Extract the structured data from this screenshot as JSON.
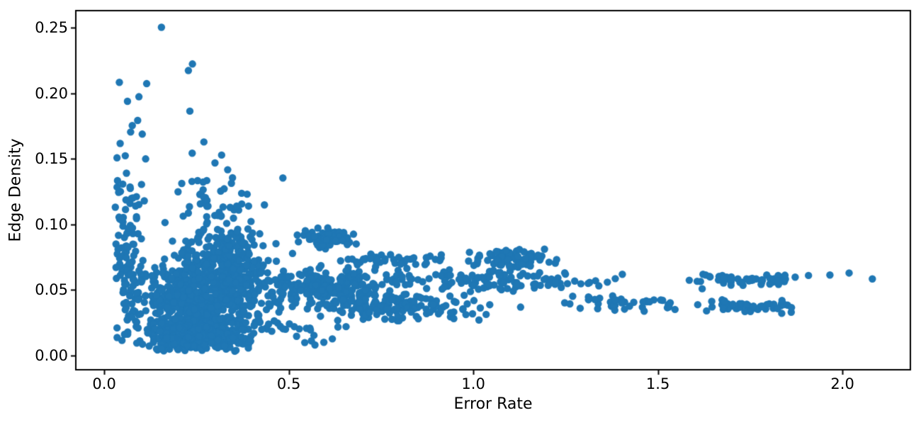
{
  "figure": {
    "background": "#ffffff",
    "text_color": "#000000",
    "spine_color": "#000000"
  },
  "chart_data": {
    "type": "scatter",
    "title": "",
    "xlabel": "Error Rate",
    "ylabel": "Edge Density",
    "x_ticks": [
      0.0,
      0.5,
      1.0,
      1.5,
      2.0
    ],
    "x_tick_labels": [
      "0.0",
      "0.5",
      "1.0",
      "1.5",
      "2.0"
    ],
    "y_ticks": [
      0.0,
      0.05,
      0.1,
      0.15,
      0.2,
      0.25
    ],
    "y_tick_labels": [
      "0.00",
      "0.05",
      "0.10",
      "0.15",
      "0.20",
      "0.25"
    ],
    "xlim": [
      -0.077,
      2.184
    ],
    "ylim": [
      -0.0108,
      0.2632
    ],
    "grid": false,
    "legend": null,
    "marker_color": "#1f77b4",
    "marker_radius_px": 5.2,
    "seed": 1337,
    "clusters": [
      {
        "name": "core-main",
        "n": 550,
        "cx": 0.26,
        "cy": 0.035,
        "sx": 0.09,
        "sy": 0.016,
        "xmin": 0.08,
        "xmax": 0.6,
        "ymin": 0.004,
        "ymax": 0.08
      },
      {
        "name": "core-low-edge",
        "n": 260,
        "cx": 0.24,
        "cy": 0.013,
        "sx": 0.07,
        "sy": 0.005,
        "xmin": 0.1,
        "xmax": 0.5,
        "ymin": 0.003,
        "ymax": 0.03
      },
      {
        "name": "core-upper",
        "n": 280,
        "cx": 0.33,
        "cy": 0.058,
        "sx": 0.09,
        "sy": 0.012,
        "xmin": 0.12,
        "xmax": 0.62,
        "ymin": 0.03,
        "ymax": 0.09
      },
      {
        "name": "core-top-fringe",
        "n": 90,
        "cx": 0.32,
        "cy": 0.083,
        "sx": 0.07,
        "sy": 0.01,
        "xmin": 0.15,
        "xmax": 0.52,
        "ymin": 0.068,
        "ymax": 0.105
      },
      {
        "name": "left-column",
        "n": 115,
        "cx": 0.062,
        "cy": 0.068,
        "sx": 0.021,
        "sy": 0.042,
        "xmin": 0.028,
        "xmax": 0.115,
        "ymin": 0.01,
        "ymax": 0.185
      },
      {
        "name": "upper-sparse",
        "n": 50,
        "cx": 0.3,
        "cy": 0.112,
        "sx": 0.05,
        "sy": 0.016,
        "xmin": 0.17,
        "xmax": 0.46,
        "ymin": 0.088,
        "ymax": 0.18
      },
      {
        "name": "hump-09",
        "n": 70,
        "cx": 0.61,
        "cy": 0.0895,
        "sx": 0.038,
        "sy": 0.004,
        "xmin": 0.5,
        "xmax": 0.69,
        "ymin": 0.079,
        "ymax": 0.098
      },
      {
        "name": "band-right-core",
        "n": 210,
        "cx": 0.62,
        "cy": 0.051,
        "sx": 0.11,
        "sy": 0.0075,
        "xmin": 0.44,
        "xmax": 1.0,
        "ymin": 0.035,
        "ymax": 0.068
      },
      {
        "name": "band-mid-low",
        "n": 130,
        "cx": 0.78,
        "cy": 0.037,
        "sx": 0.12,
        "sy": 0.005,
        "xmin": 0.55,
        "xmax": 1.08,
        "ymin": 0.026,
        "ymax": 0.048
      },
      {
        "name": "band-mid",
        "n": 110,
        "cx": 1.05,
        "cy": 0.058,
        "sx": 0.16,
        "sy": 0.004,
        "xmin": 0.78,
        "xmax": 1.42,
        "ymin": 0.048,
        "ymax": 0.066
      },
      {
        "name": "band-075",
        "n": 75,
        "cx": 1.1,
        "cy": 0.0745,
        "sx": 0.07,
        "sy": 0.0035,
        "xmin": 0.97,
        "xmax": 1.25,
        "ymin": 0.066,
        "ymax": 0.082
      },
      {
        "name": "band-07-left",
        "n": 45,
        "cx": 0.78,
        "cy": 0.073,
        "sx": 0.09,
        "sy": 0.003,
        "xmin": 0.63,
        "xmax": 0.97,
        "ymin": 0.066,
        "ymax": 0.08
      },
      {
        "name": "band-14",
        "n": 40,
        "cx": 1.42,
        "cy": 0.04,
        "sx": 0.09,
        "sy": 0.0035,
        "xmin": 1.24,
        "xmax": 1.57,
        "ymin": 0.03,
        "ymax": 0.047
      },
      {
        "name": "right-band-06",
        "n": 55,
        "cx": 1.76,
        "cy": 0.059,
        "sx": 0.1,
        "sy": 0.0028,
        "xmin": 1.6,
        "xmax": 1.93,
        "ymin": 0.053,
        "ymax": 0.065
      },
      {
        "name": "right-band-037",
        "n": 50,
        "cx": 1.77,
        "cy": 0.038,
        "sx": 0.08,
        "sy": 0.0025,
        "xmin": 1.59,
        "xmax": 1.91,
        "ymin": 0.032,
        "ymax": 0.044
      },
      {
        "name": "low-right-sparse",
        "n": 18,
        "cx": 0.52,
        "cy": 0.018,
        "sx": 0.06,
        "sy": 0.006,
        "xmin": 0.4,
        "xmax": 0.66,
        "ymin": 0.008,
        "ymax": 0.03
      }
    ],
    "outlier_points": [
      [
        0.155,
        0.2505
      ],
      [
        0.239,
        0.2225
      ],
      [
        0.228,
        0.2175
      ],
      [
        0.041,
        0.2085
      ],
      [
        0.115,
        0.2075
      ],
      [
        0.094,
        0.1975
      ],
      [
        0.063,
        0.194
      ],
      [
        0.232,
        0.1865
      ],
      [
        0.076,
        0.1755
      ],
      [
        0.103,
        0.169
      ],
      [
        0.27,
        0.163
      ],
      [
        0.057,
        0.1525
      ],
      [
        0.318,
        0.153
      ],
      [
        0.3,
        0.147
      ],
      [
        0.036,
        0.1335
      ],
      [
        0.253,
        0.1335
      ],
      [
        0.484,
        0.1355
      ],
      [
        0.434,
        0.115
      ],
      [
        0.2,
        0.125
      ],
      [
        1.585,
        0.0575
      ],
      [
        1.62,
        0.051
      ],
      [
        1.966,
        0.0615
      ],
      [
        2.018,
        0.063
      ],
      [
        2.081,
        0.0585
      ],
      [
        1.128,
        0.037
      ],
      [
        0.618,
        0.0128
      ]
    ]
  }
}
